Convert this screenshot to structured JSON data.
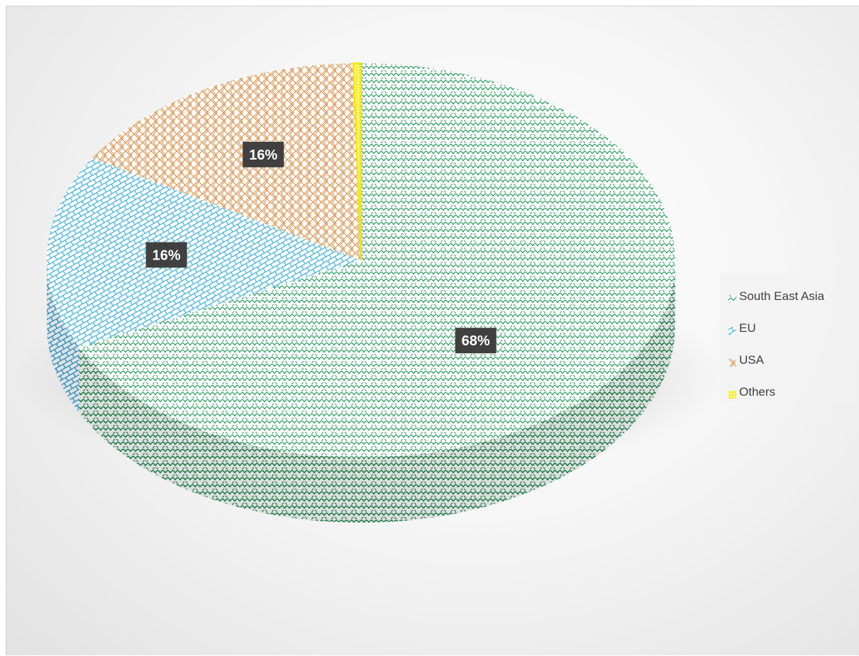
{
  "chart_data": {
    "type": "pie",
    "title": "",
    "slices": [
      {
        "label": "South East Asia",
        "value": 68,
        "display": "68%",
        "color": "#2e9e62",
        "pattern": "scales-green"
      },
      {
        "label": "EU",
        "value": 16,
        "display": "16%",
        "color": "#3fb0de",
        "pattern": "diagonal-brick-blue"
      },
      {
        "label": "USA",
        "value": 16,
        "display": "16%",
        "color": "#d9904b",
        "pattern": "weave-orange"
      },
      {
        "label": "Others",
        "value": 0.4,
        "display": "",
        "color": "#f2e600",
        "pattern": "grid-yellow"
      }
    ],
    "legend_position": "right",
    "style": "3d-pie"
  }
}
